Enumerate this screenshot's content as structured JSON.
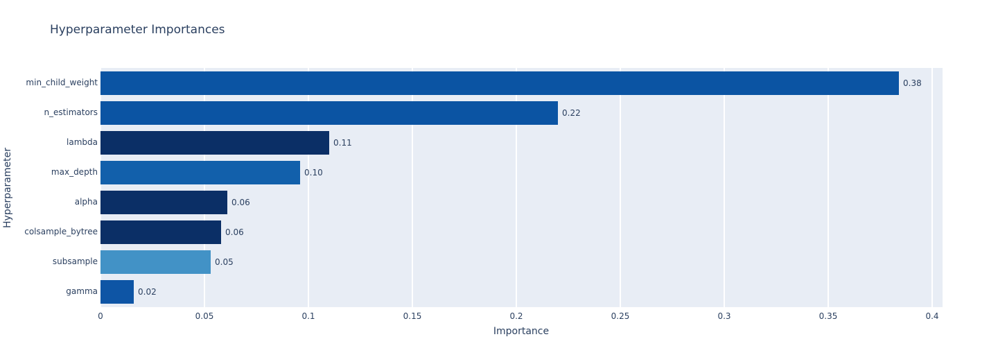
{
  "chart_data": {
    "type": "bar",
    "orientation": "horizontal",
    "title": "Hyperparameter Importances",
    "xlabel": "Importance",
    "ylabel": "Hyperparameter",
    "categories": [
      "min_child_weight",
      "n_estimators",
      "lambda",
      "max_depth",
      "alpha",
      "colsample_bytree",
      "subsample",
      "gamma"
    ],
    "values": [
      0.384,
      0.22,
      0.11,
      0.096,
      0.061,
      0.058,
      0.053,
      0.016
    ],
    "value_labels": [
      "0.38",
      "0.22",
      "0.11",
      "0.10",
      "0.06",
      "0.06",
      "0.05",
      "0.02"
    ],
    "bar_colors": [
      "#0b54a3",
      "#0b54a3",
      "#0b2f66",
      "#1260ab",
      "#0b2f66",
      "#0b2f66",
      "#4292c6",
      "#0e55a5"
    ],
    "xticks": [
      0,
      0.05,
      0.1,
      0.15,
      0.2,
      0.25,
      0.3,
      0.35,
      0.4
    ],
    "xtick_labels": [
      "0",
      "0.05",
      "0.1",
      "0.15",
      "0.2",
      "0.25",
      "0.3",
      "0.35",
      "0.4"
    ],
    "xlim": [
      0,
      0.405
    ],
    "grid": true,
    "legend": "none",
    "plot_bg": "#e8edf5",
    "paper_bg": "#ffffff",
    "grid_color": "#ffffff",
    "text_color": "#2a3f5f"
  }
}
